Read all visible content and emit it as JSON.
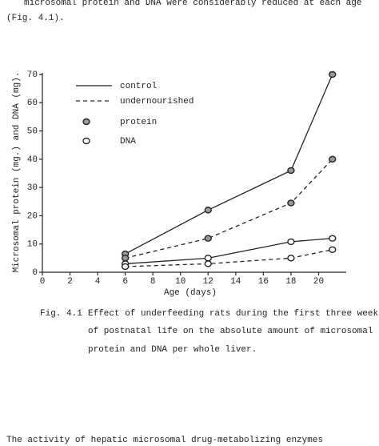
{
  "text_top": [
    "microsomal protein and DNA were considerably reduced at each age",
    "(Fig. 4.1)."
  ],
  "chart_data": {
    "type": "line",
    "xlabel": "Age (days)",
    "ylabel": "Microsomal protein (mg.) and DNA (mg).",
    "x": [
      6,
      12,
      18,
      21
    ],
    "xlim": [
      0,
      22
    ],
    "xticks": [
      0,
      2,
      4,
      6,
      8,
      10,
      12,
      14,
      16,
      18,
      20
    ],
    "ylim": [
      0,
      70
    ],
    "yticks": [
      0,
      10,
      20,
      30,
      40,
      50,
      60,
      70
    ],
    "legend": [
      {
        "label": "control",
        "dash": "solid"
      },
      {
        "label": "undernourished",
        "dash": "dashed"
      },
      {
        "label": "protein",
        "marker": "filled"
      },
      {
        "label": "DNA",
        "marker": "open"
      }
    ],
    "series": [
      {
        "dash": "solid",
        "marker": "filled",
        "color": "#222222",
        "values": [
          6.5,
          22,
          36,
          70
        ]
      },
      {
        "dash": "dashed",
        "marker": "filled",
        "color": "#222222",
        "values": [
          5,
          12,
          24.5,
          40
        ]
      },
      {
        "dash": "solid",
        "marker": "open",
        "color": "#222222",
        "values": [
          3,
          5,
          10.8,
          12
        ]
      },
      {
        "dash": "dashed",
        "marker": "open",
        "color": "#222222",
        "values": [
          2,
          3,
          5,
          8
        ]
      }
    ]
  },
  "caption": {
    "number": "Fig. 4.1",
    "lines": [
      "Effect of underfeeding rats during the first three week",
      "of postnatal life on the absolute amount of microsomal",
      "protein and DNA per whole liver."
    ]
  },
  "text_bottom": "The activity of hepatic microsomal drug-metabolizing enzymes"
}
